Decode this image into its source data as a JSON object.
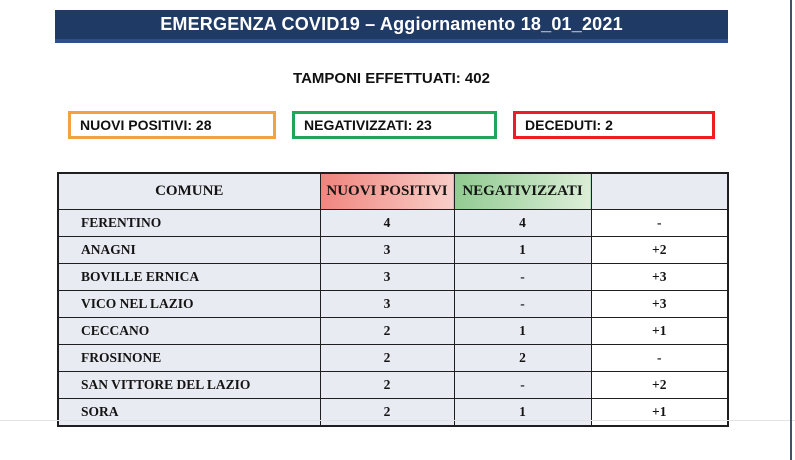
{
  "header": {
    "title": "EMERGENZA COVID19 – Aggiornamento 18_01_2021"
  },
  "subtitle": "TAMPONI EFFETTUATI: 402",
  "summary_boxes": [
    {
      "label": "NUOVI POSITIVI: 28",
      "border_color": "#f2a143"
    },
    {
      "label": "NEGATIVIZZATI: 23",
      "border_color": "#21a559"
    },
    {
      "label": "DECEDUTI: 2",
      "border_color": "#ee1c25"
    }
  ],
  "table": {
    "columns": [
      "COMUNE",
      "NUOVI POSITIVI",
      "NEGATIVIZZATI",
      ""
    ],
    "rows": [
      [
        "FERENTINO",
        "4",
        "4",
        "-"
      ],
      [
        "ANAGNI",
        "3",
        "1",
        "+2"
      ],
      [
        "BOVILLE ERNICA",
        "3",
        "-",
        "+3"
      ],
      [
        "VICO NEL LAZIO",
        "3",
        "-",
        "+3"
      ],
      [
        "CECCANO",
        "2",
        "1",
        "+1"
      ],
      [
        "FROSINONE",
        "2",
        "2",
        "-"
      ],
      [
        "SAN VITTORE DEL LAZIO",
        "2",
        "-",
        "+2"
      ],
      [
        "SORA",
        "2",
        "1",
        "+1"
      ]
    ]
  },
  "colors": {
    "navy": "#1f3a64",
    "navy_accent": "#2d5186",
    "cell_bg": "#e9ebf3",
    "border_dark": "#1f1f1f",
    "red_header_from": "#ef837c",
    "red_header_to": "#f9cfc9",
    "green_header_from": "#8fca8f",
    "green_header_to": "#ddefd9",
    "edge_line": "#43506a"
  }
}
